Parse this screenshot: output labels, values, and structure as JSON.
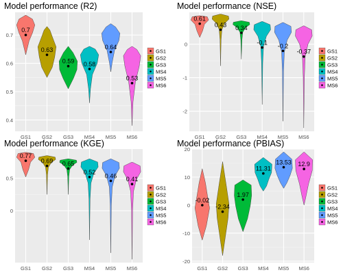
{
  "figure": {
    "categories": [
      "GS1",
      "GS2",
      "GS3",
      "MS4",
      "MS5",
      "MS6"
    ],
    "colors": [
      "#F8766D",
      "#B79F00",
      "#00BA38",
      "#00BFC4",
      "#619CFF",
      "#F564E3"
    ]
  },
  "chart_data": [
    {
      "type": "violin",
      "title": "Model performance (R2)",
      "xlabel": "",
      "ylabel": "",
      "categories": [
        "GS1",
        "GS2",
        "GS3",
        "MS4",
        "MS5",
        "MS6"
      ],
      "means": [
        0.7,
        0.63,
        0.59,
        0.58,
        0.64,
        0.53
      ],
      "labels": [
        "0.7",
        "0.63",
        "0.59",
        "0.58",
        "0.64",
        "0.53"
      ],
      "ranges": [
        [
          0.63,
          0.77
        ],
        [
          0.55,
          0.73
        ],
        [
          0.51,
          0.66
        ],
        [
          0.46,
          0.66
        ],
        [
          0.57,
          0.74
        ],
        [
          0.38,
          0.66
        ]
      ],
      "ylim": [
        0.36,
        0.78
      ],
      "yticks": [
        0.4,
        0.5,
        0.6,
        0.7
      ],
      "grid": true,
      "legend": "right"
    },
    {
      "type": "violin",
      "title": "Model performance (NSE)",
      "xlabel": "",
      "ylabel": "",
      "categories": [
        "GS1",
        "GS2",
        "GS3",
        "MS4",
        "MS5",
        "MS6"
      ],
      "means": [
        0.61,
        0.43,
        0.34,
        -0.1,
        -0.2,
        -0.37
      ],
      "labels": [
        "0.61",
        "0.43",
        "0.34",
        "-0.1",
        "-0.2",
        "-0.37"
      ],
      "ranges": [
        [
          0.2,
          0.85
        ],
        [
          -0.65,
          0.9
        ],
        [
          -0.45,
          0.7
        ],
        [
          -1.8,
          0.68
        ],
        [
          -2.3,
          0.65
        ],
        [
          -2.5,
          0.55
        ]
      ],
      "ylim": [
        -2.6,
        0.95
      ],
      "yticks": [
        -2,
        -1,
        0
      ],
      "grid": true,
      "legend": "right"
    },
    {
      "type": "violin",
      "title": "Model performance (KGE)",
      "xlabel": "",
      "ylabel": "",
      "categories": [
        "GS1",
        "GS2",
        "GS3",
        "MS4",
        "MS5",
        "MS6"
      ],
      "means": [
        0.77,
        0.69,
        0.65,
        0.52,
        0.46,
        0.41
      ],
      "labels": [
        "0.77",
        "0.69",
        "0.65",
        "0.52",
        "0.46",
        "0.41"
      ],
      "ranges": [
        [
          0.52,
          0.9
        ],
        [
          0.25,
          0.85
        ],
        [
          0.25,
          0.8
        ],
        [
          -0.45,
          0.8
        ],
        [
          -0.65,
          0.8
        ],
        [
          -0.75,
          0.75
        ]
      ],
      "ylim": [
        -0.8,
        0.95
      ],
      "yticks": [
        0,
        0.5
      ],
      "grid": true,
      "legend": "right"
    },
    {
      "type": "violin",
      "title": "Model performance (PBIAS)",
      "xlabel": "",
      "ylabel": "",
      "categories": [
        "GS1",
        "GS2",
        "GS3",
        "MS4",
        "MS5",
        "MS6"
      ],
      "means": [
        -0.02,
        -2.34,
        1.97,
        11.31,
        13.53,
        12.9
      ],
      "labels": [
        "-0.02",
        "-2.34",
        "1.97",
        "11.31",
        "13.53",
        "12.9"
      ],
      "ranges": [
        [
          -12.5,
          13
        ],
        [
          -18,
          15.5
        ],
        [
          -9.5,
          9
        ],
        [
          5,
          17
        ],
        [
          6,
          19
        ],
        [
          0,
          19
        ]
      ],
      "ylim": [
        -20.5,
        20
      ],
      "yticks": [
        -20,
        -10,
        0,
        10,
        20
      ],
      "grid": true,
      "legend": "right"
    }
  ]
}
